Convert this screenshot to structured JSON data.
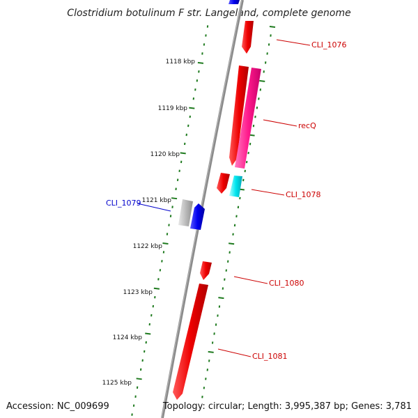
{
  "title": "Clostridium botulinum F str. Langeland, complete genome",
  "footer": {
    "accession": "Accession: NC_009699",
    "summary": "Topology: circular; Length: 3,995,387 bp; Genes: 3,781"
  },
  "ticks": [
    "1118 kbp",
    "1119 kbp",
    "1120 kbp",
    "1121 kbp",
    "1122 kbp",
    "1123 kbp",
    "1124 kbp",
    "1125 kbp"
  ],
  "gene_labels": [
    {
      "name": "CLI_1076",
      "color": "#cc0000"
    },
    {
      "name": "recQ",
      "color": "#cc0000"
    },
    {
      "name": "CLI_1078",
      "color": "#cc0000"
    },
    {
      "name": "CLI_1079",
      "color": "#0000cc"
    },
    {
      "name": "CLI_1080",
      "color": "#cc0000"
    },
    {
      "name": "CLI_1081",
      "color": "#cc0000"
    }
  ],
  "colors": {
    "backbone": "#8a8a8a",
    "ticks": "#1e7a1e",
    "forward_gene": "#ee0000",
    "recQ_gene": "#ff1a8c",
    "cyan_gene": "#00e5ee",
    "reverse_gene": "#0000ee",
    "gray_gene": "#bbbbbb"
  }
}
